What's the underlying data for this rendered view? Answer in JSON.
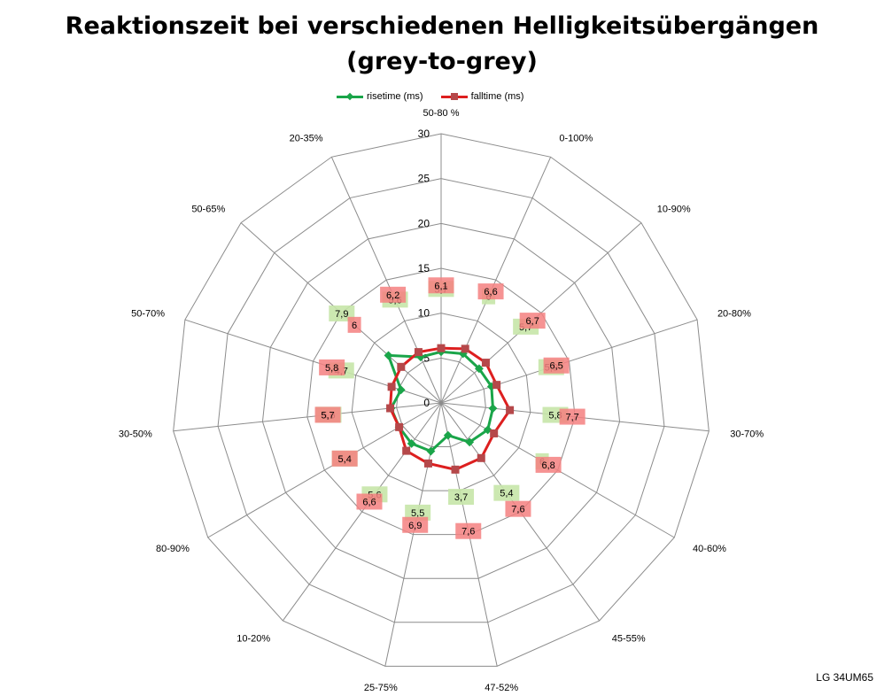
{
  "chart_data": {
    "type": "radar",
    "title": "Reaktionszeit bei verschiedenen Helligkeitsübergängen",
    "subtitle": "(grey-to-grey)",
    "categories": [
      "50-80 %",
      "0-100%",
      "10-90%",
      "20-80%",
      "30-70%",
      "40-60%",
      "45-55%",
      "47-52%",
      "25-75%",
      "10-20%",
      "80-90%",
      "30-50%",
      "50-70%",
      "50-65%",
      "20-35%"
    ],
    "series": [
      {
        "name": "risetime (ms)",
        "color": "#1aa549",
        "label_bg": "#c6e6a8",
        "values": [
          5.7,
          6.0,
          5.7,
          5.9,
          5.8,
          6.0,
          5.4,
          3.7,
          5.5,
          5.6,
          5.4,
          5.6,
          4.7,
          7.9,
          5.6
        ]
      },
      {
        "name": "falltime (ms)",
        "color": "#dd1f1f",
        "label_bg": "#f48080",
        "values": [
          6.1,
          6.6,
          6.7,
          6.5,
          7.7,
          6.8,
          7.6,
          7.6,
          6.9,
          6.6,
          5.4,
          5.7,
          5.8,
          6.0,
          6.2
        ]
      }
    ],
    "radial_axis": {
      "min": 0,
      "max": 30,
      "step": 5,
      "ticks": [
        "0",
        "5",
        "10",
        "15",
        "20",
        "25",
        "30"
      ]
    },
    "grid": true,
    "legend_position": "top"
  },
  "legend": {
    "rise": "risetime (ms)",
    "fall": "falltime (ms)"
  },
  "footer": "LG 34UM65"
}
